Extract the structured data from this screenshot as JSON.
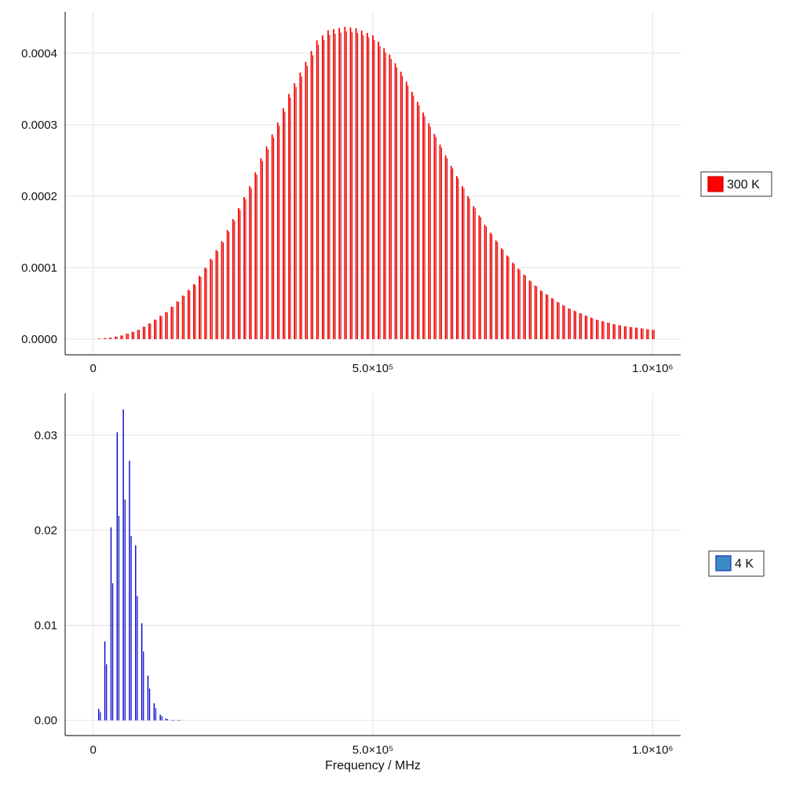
{
  "chart_data": [
    {
      "type": "bar",
      "title": "",
      "xlabel": "",
      "ylabel": "",
      "xlim": [
        -50000,
        1050000
      ],
      "ylim": [
        -2.2e-05,
        0.000458
      ],
      "x_ticks": [
        0,
        500000,
        1000000
      ],
      "x_tick_labels": [
        "0",
        "5.0×10⁵",
        "1.0×10⁶"
      ],
      "y_ticks": [
        0,
        0.0001,
        0.0002,
        0.0003,
        0.0004
      ],
      "y_tick_labels": [
        "0.0000",
        "0.0001",
        "0.0002",
        "0.0003",
        "0.0004"
      ],
      "grid": true,
      "legend_position": "right",
      "series": [
        {
          "name": "300 K",
          "color": "#ff0000",
          "color_border": "#cc0000",
          "line_spacing": 10000,
          "envelope_x": [
            0,
            30000,
            50000,
            80000,
            100000,
            130000,
            150000,
            180000,
            200000,
            230000,
            250000,
            280000,
            300000,
            330000,
            350000,
            380000,
            400000,
            420000,
            450000,
            470000,
            500000,
            530000,
            550000,
            580000,
            600000,
            630000,
            650000,
            680000,
            700000,
            730000,
            750000,
            780000,
            800000,
            830000,
            850000,
            880000,
            900000,
            930000,
            950000,
            980000,
            1000000
          ],
          "envelope_y": [
            0,
            2e-06,
            5e-06,
            1.3e-05,
            2.2e-05,
            3.8e-05,
            5.3e-05,
            7.7e-05,
            0.0001,
            0.000137,
            0.000168,
            0.000214,
            0.000253,
            0.000303,
            0.000343,
            0.000388,
            0.000418,
            0.000432,
            0.000437,
            0.000435,
            0.000425,
            0.000398,
            0.000374,
            0.000332,
            0.000302,
            0.000257,
            0.000228,
            0.000186,
            0.00016,
            0.000127,
            0.000107,
            8.2e-05,
            6.8e-05,
            5.2e-05,
            4.3e-05,
            3.3e-05,
            2.7e-05,
            2.1e-05,
            1.8e-05,
            1.5e-05,
            1.3e-05
          ]
        }
      ]
    },
    {
      "type": "bar",
      "title": "",
      "xlabel": "Frequency / MHz",
      "ylabel": "",
      "xlim": [
        -50000,
        1050000
      ],
      "ylim": [
        -0.0016,
        0.0344
      ],
      "x_ticks": [
        0,
        500000,
        1000000
      ],
      "x_tick_labels": [
        "0",
        "5.0×10⁵",
        "1.0×10⁶"
      ],
      "y_ticks": [
        0,
        0.01,
        0.02,
        0.03
      ],
      "y_tick_labels": [
        "0.00",
        "0.01",
        "0.02",
        "0.03"
      ],
      "grid": true,
      "legend_position": "right",
      "series": [
        {
          "name": "4 K",
          "color": "#0000cc",
          "legend_fill": "#3a8cc8",
          "legend_border": "#1a2fb0",
          "x": [
            10000,
            21000,
            32000,
            43000,
            54000,
            65000,
            76000,
            87000,
            98000,
            109000,
            120000,
            130000,
            141000,
            152000
          ],
          "values": [
            0.0012,
            0.0083,
            0.0203,
            0.0303,
            0.0327,
            0.0273,
            0.0184,
            0.0102,
            0.0047,
            0.0018,
            0.0006,
            0.0002,
            5e-05,
            1e-05
          ],
          "echo_factor": 0.71,
          "echo_offset": 3000
        }
      ]
    }
  ]
}
